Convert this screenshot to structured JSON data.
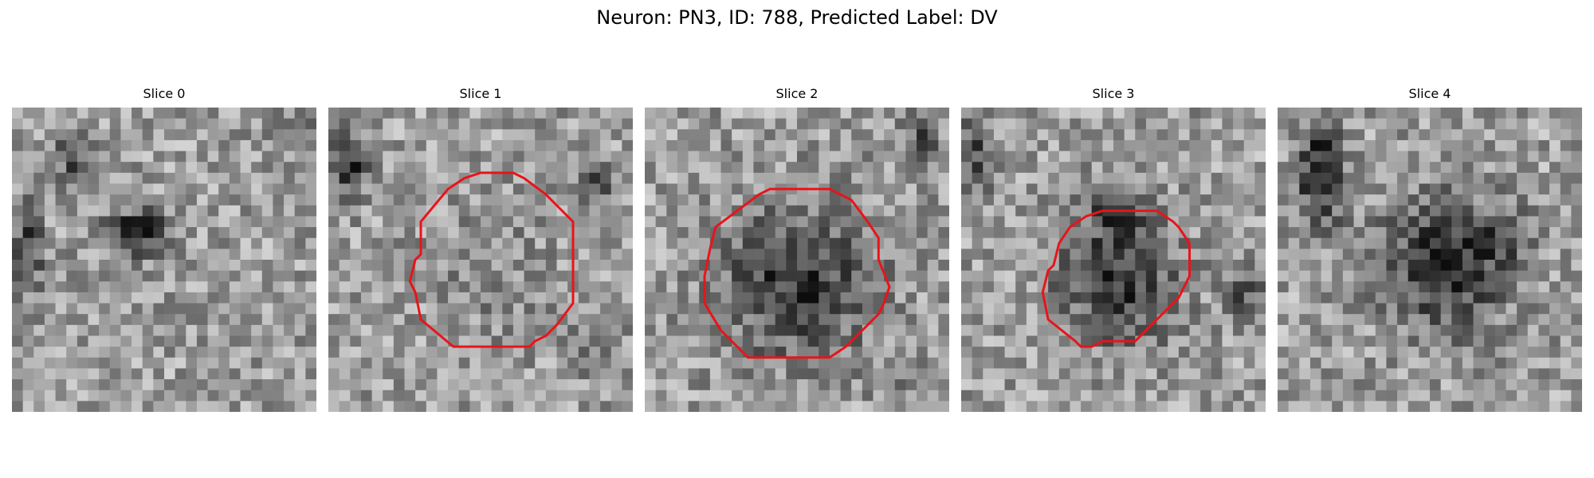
{
  "figure": {
    "title": "Neuron: PN3, ID: 788, Predicted Label: DV"
  },
  "panels": [
    {
      "title": "Slice 0",
      "contour": false
    },
    {
      "title": "Slice 1",
      "contour": true
    },
    {
      "title": "Slice 2",
      "contour": true
    },
    {
      "title": "Slice 3",
      "contour": true
    },
    {
      "title": "Slice 4",
      "contour": false
    }
  ],
  "colors": {
    "contour": "#e8141a",
    "background": "#ffffff"
  },
  "colormap": "grayscale"
}
